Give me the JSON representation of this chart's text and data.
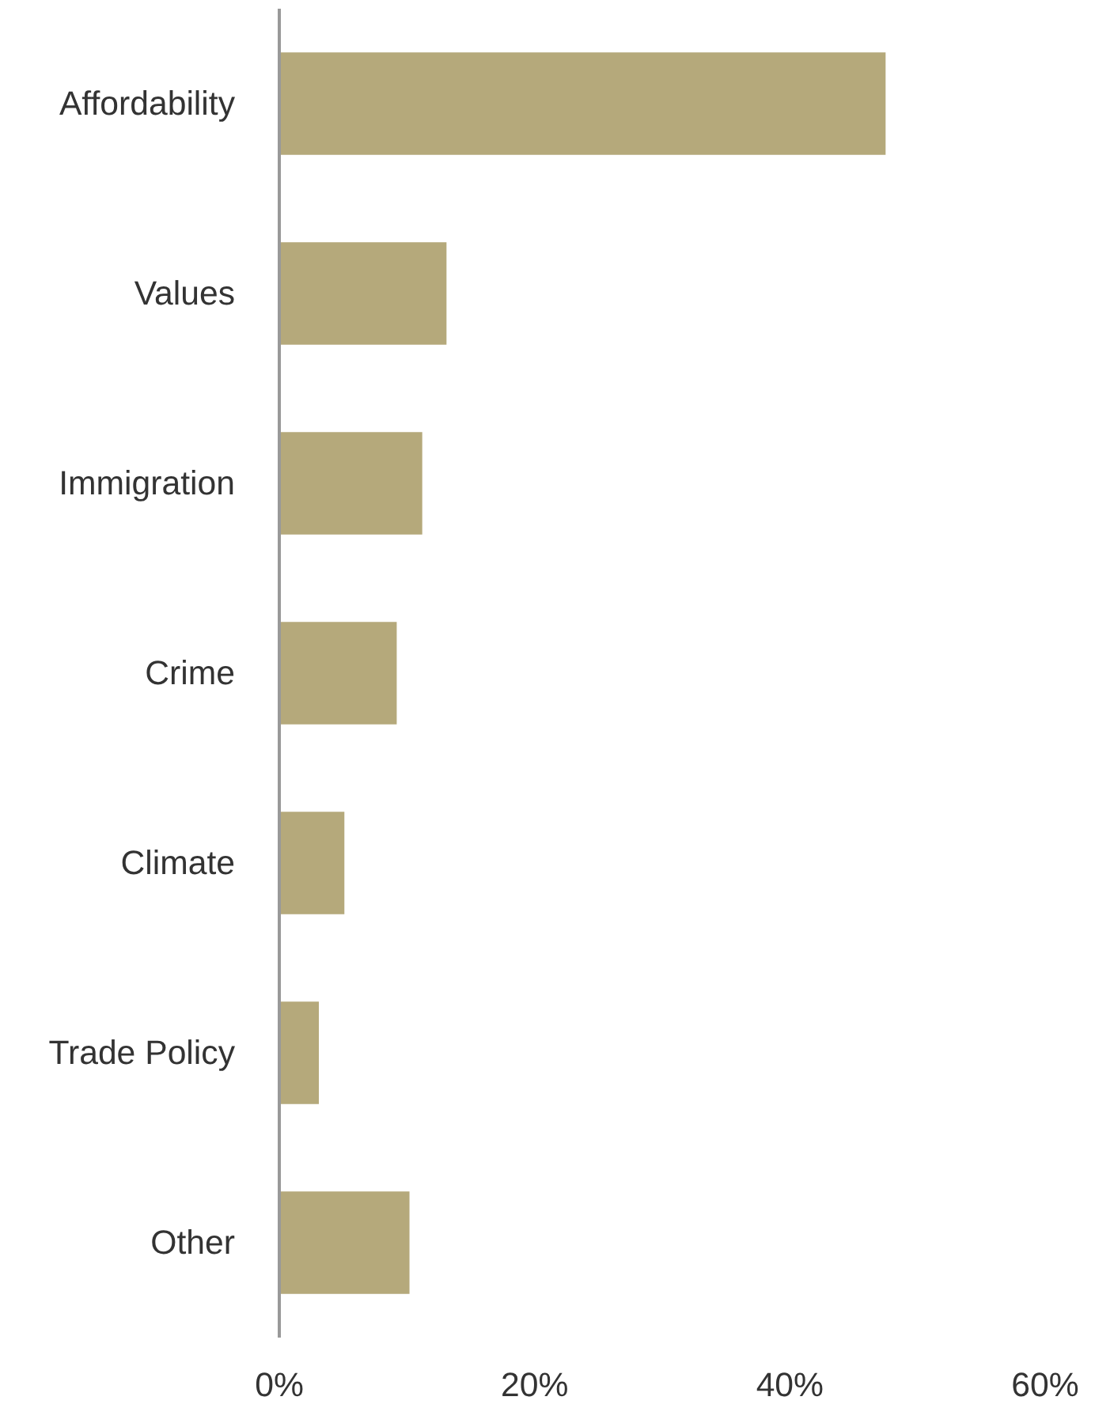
{
  "chart_data": {
    "type": "bar",
    "orientation": "horizontal",
    "categories": [
      "Affordability",
      "Values",
      "Immigration",
      "Crime",
      "Climate",
      "Trade Policy",
      "Other"
    ],
    "values": [
      47.5,
      13.1,
      11.2,
      9.2,
      5.1,
      3.1,
      10.2
    ],
    "color": "#b5a97b",
    "xlim": [
      0,
      60
    ],
    "xticks": [
      {
        "value": 0,
        "label": "0%"
      },
      {
        "value": 20,
        "label": "20%"
      },
      {
        "value": 40,
        "label": "40%"
      },
      {
        "value": 60,
        "label": "60%"
      }
    ]
  }
}
